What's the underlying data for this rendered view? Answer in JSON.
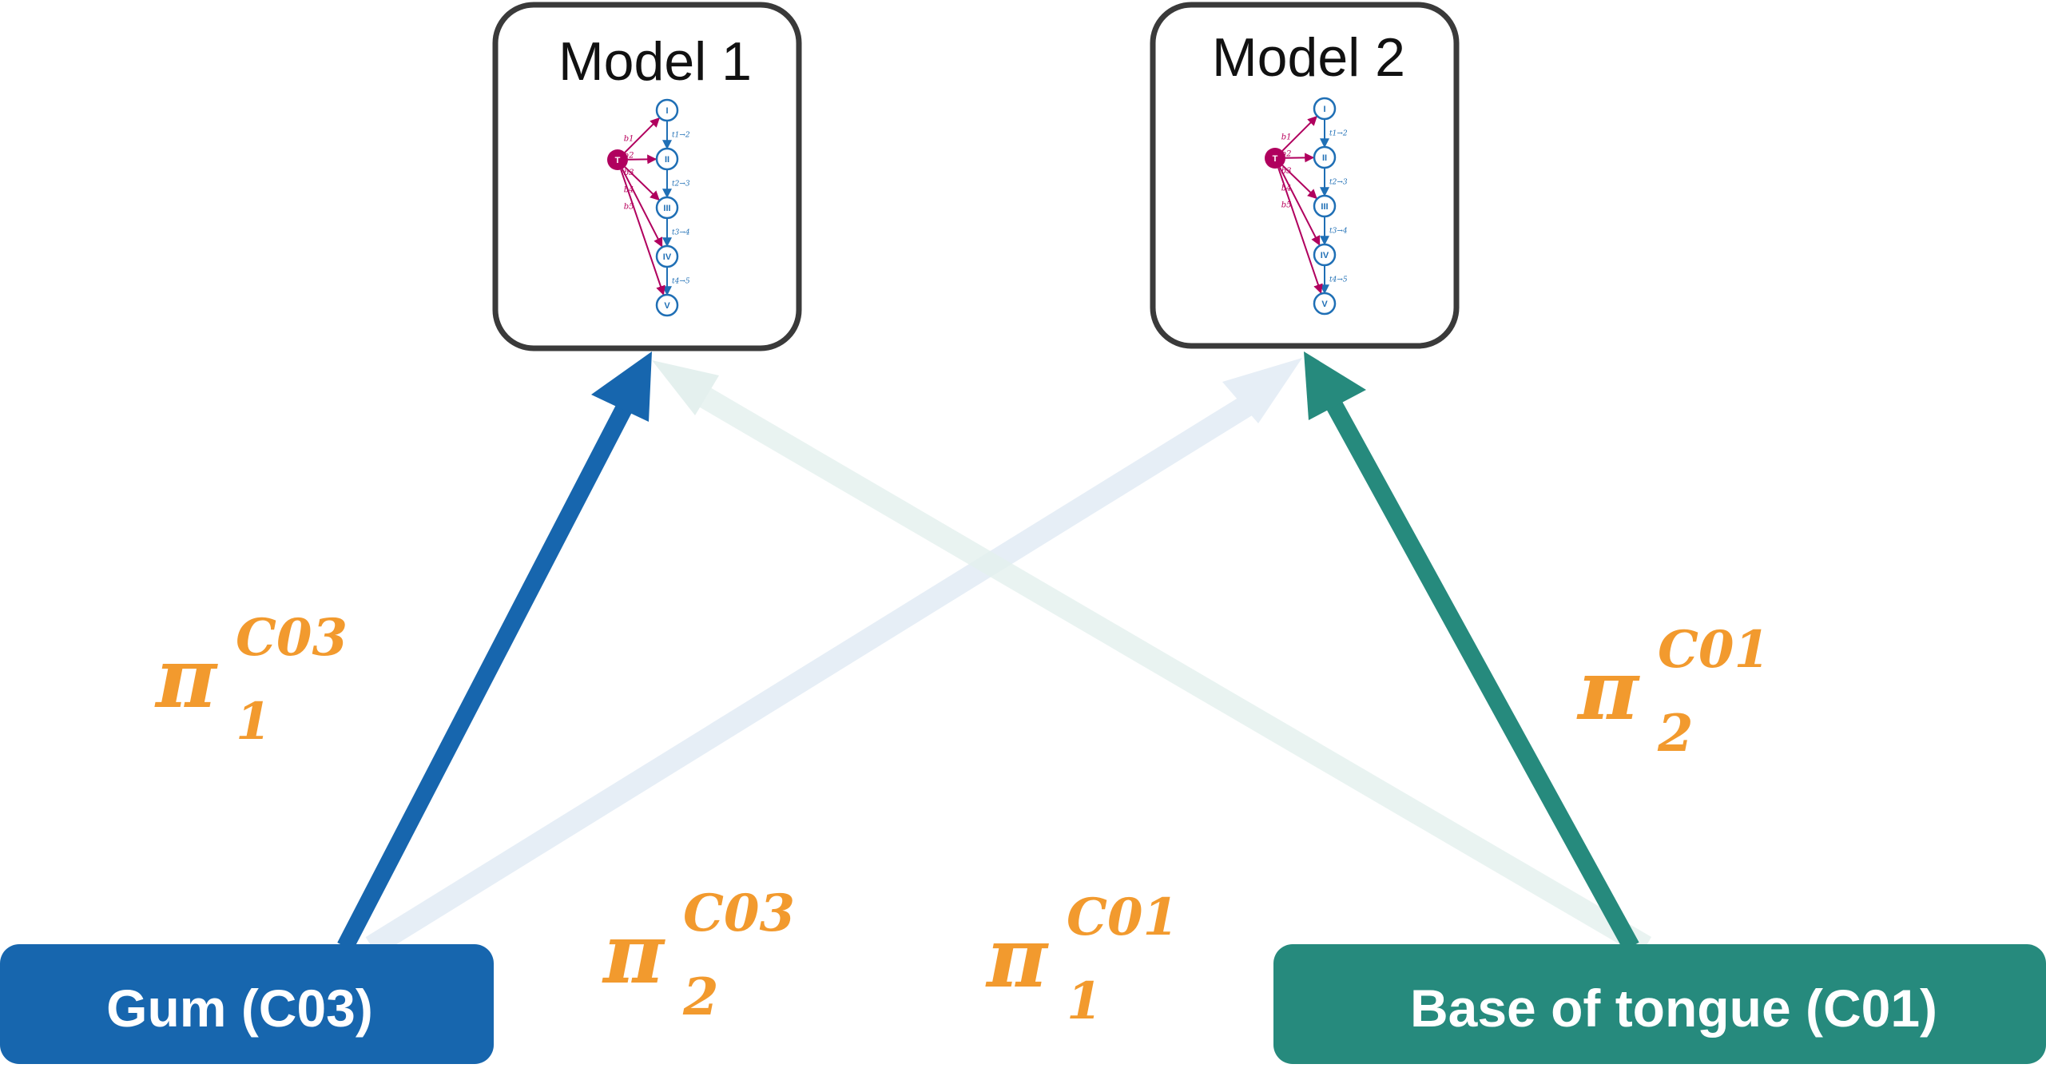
{
  "colors": {
    "gum": "#1766ae",
    "tongue": "#268a7d",
    "pi": "#f29a2e",
    "box_border": "#3a3a3a",
    "faded_blue": "#e6eef6",
    "faded_teal": "#e4f0ee",
    "state": "#1f6fb5",
    "tumor": "#b0005e"
  },
  "models": [
    {
      "title": "Model 1",
      "graph": {
        "tumor_label": "T",
        "states": [
          "I",
          "II",
          "III",
          "IV",
          "V"
        ],
        "b_labels": [
          "b1",
          "b2",
          "b3",
          "b4",
          "b5"
        ],
        "t_labels": [
          "t1→2",
          "t2→3",
          "t3→4",
          "t4→5"
        ]
      }
    },
    {
      "title": "Model 2",
      "graph": {
        "tumor_label": "T",
        "states": [
          "I",
          "II",
          "III",
          "IV",
          "V"
        ],
        "b_labels": [
          "b1",
          "b2",
          "b3",
          "b4",
          "b5"
        ],
        "t_labels": [
          "t1→2",
          "t2→3",
          "t3→4",
          "t4→5"
        ]
      }
    }
  ],
  "sources": {
    "gum": {
      "label": "Gum (C03)"
    },
    "tongue": {
      "label": "Base of tongue (C01)"
    }
  },
  "weights": [
    {
      "id": "pi1_C03",
      "symbol": "π",
      "sub": "1",
      "sup": "C03"
    },
    {
      "id": "pi2_C03",
      "symbol": "π",
      "sub": "2",
      "sup": "C03"
    },
    {
      "id": "pi1_C01",
      "symbol": "π",
      "sub": "1",
      "sup": "C01"
    },
    {
      "id": "pi2_C01",
      "symbol": "π",
      "sub": "2",
      "sup": "C01"
    }
  ]
}
